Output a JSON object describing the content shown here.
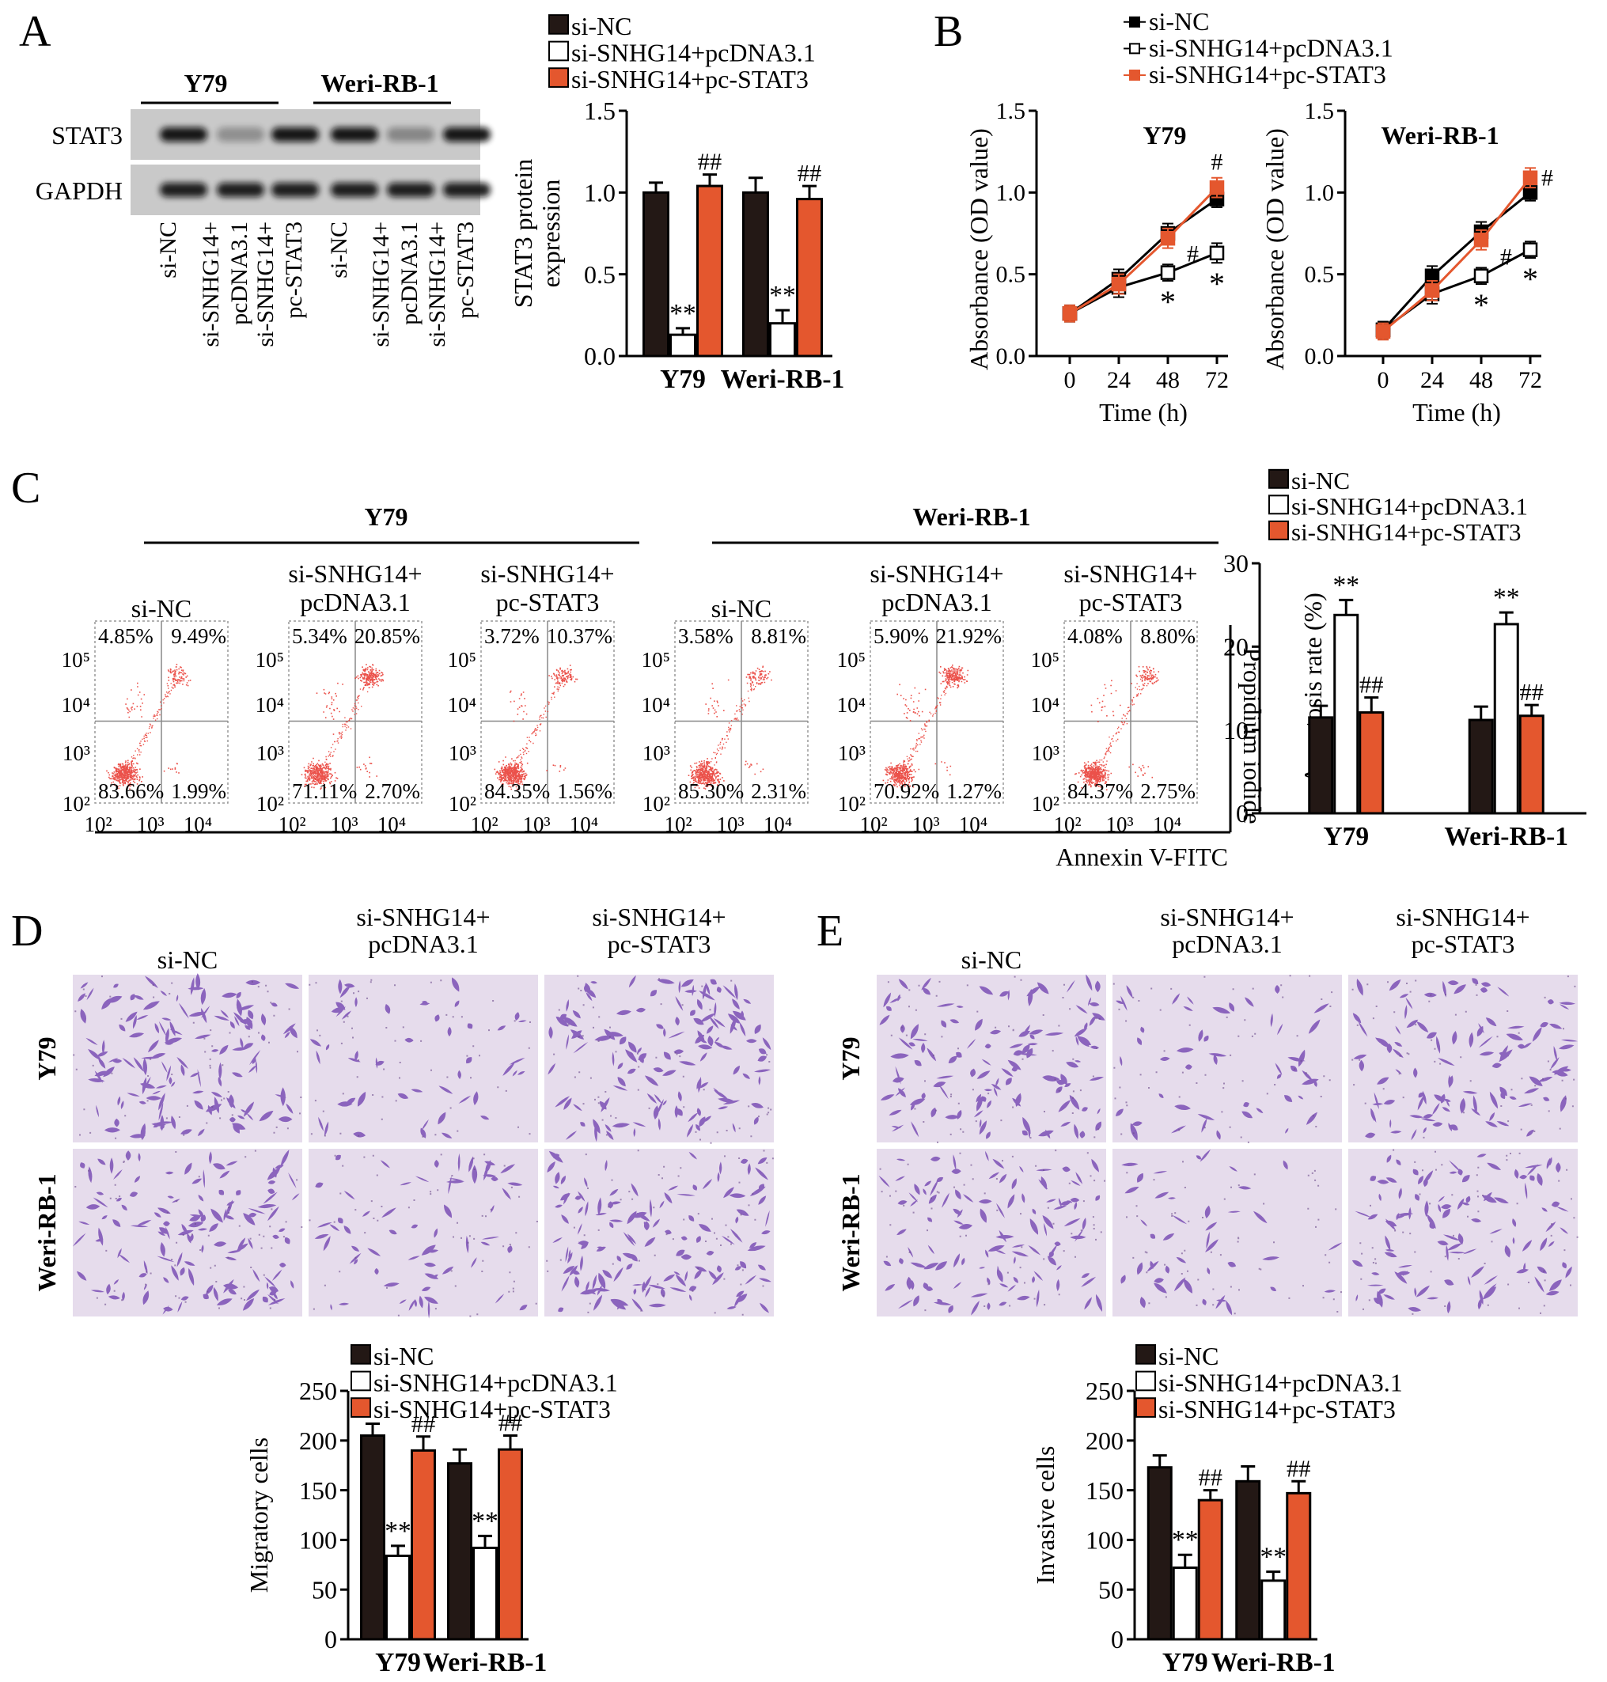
{
  "colors": {
    "si_nc": "#231815",
    "pcdna": "#ffffff",
    "stat3": "#e4572e",
    "flow_dot": "#e8322a",
    "crystal_violet": "#7a4fb5"
  },
  "legend_labels": [
    "si-NC",
    "si-SNHG14+pcDNA3.1",
    "si-SNHG14+pc-STAT3"
  ],
  "panel_labels": {
    "a": "A",
    "b": "B",
    "c": "C",
    "d": "D",
    "e": "E"
  },
  "western": {
    "cell_lines": [
      "Y79",
      "Weri-RB-1"
    ],
    "rows": [
      "STAT3",
      "GAPDH"
    ],
    "lanes": [
      "si-NC",
      "si-SNHG14+ pcDNA3.1",
      "si-SNHG14+ pc-STAT3",
      "si-NC",
      "si-SNHG14+ pcDNA3.1",
      "si-SNHG14+ pc-STAT3"
    ],
    "band_intensity": {
      "STAT3": [
        0.95,
        0.3,
        0.95,
        0.95,
        0.35,
        0.95
      ],
      "GAPDH": [
        0.9,
        0.9,
        0.9,
        0.9,
        0.9,
        0.9
      ]
    }
  },
  "flow": {
    "cell_lines": [
      "Y79",
      "Weri-RB-1"
    ],
    "group_labels": [
      [
        "si-NC"
      ],
      [
        "si-SNHG14+",
        "pcDNA3.1"
      ],
      [
        "si-SNHG14+",
        "pc-STAT3"
      ],
      [
        "si-NC"
      ],
      [
        "si-SNHG14+",
        "pcDNA3.1"
      ],
      [
        "si-SNHG14+",
        "pc-STAT3"
      ]
    ],
    "quadrants": [
      {
        "ul": "4.85%",
        "ur": "9.49%",
        "ll": "83.66%",
        "lr": "1.99%"
      },
      {
        "ul": "5.34%",
        "ur": "20.85%",
        "ll": "71.11%",
        "lr": "2.70%"
      },
      {
        "ul": "3.72%",
        "ur": "10.37%",
        "ll": "84.35%",
        "lr": "1.56%"
      },
      {
        "ul": "3.58%",
        "ur": "8.81%",
        "ll": "85.30%",
        "lr": "2.31%"
      },
      {
        "ul": "5.90%",
        "ur": "21.92%",
        "ll": "70.92%",
        "lr": "1.27%"
      },
      {
        "ul": "4.08%",
        "ur": "8.80%",
        "ll": "84.37%",
        "lr": "2.75%"
      }
    ],
    "y_ticks": [
      "10⁵",
      "10⁴",
      "10³",
      "10²"
    ],
    "x_ticks": [
      "10²",
      "10³",
      "10⁴"
    ],
    "y_axis": "Propidium iodide",
    "x_axis": "Annexin V-FITC"
  },
  "micrographs": {
    "column_labels": [
      [
        "si-NC"
      ],
      [
        "si-SNHG14+",
        "pcDNA3.1"
      ],
      [
        "si-SNHG14+",
        "pc-STAT3"
      ]
    ],
    "row_labels": [
      "Y79",
      "Weri-RB-1"
    ],
    "cell_density_d": [
      [
        1.0,
        0.35,
        0.95
      ],
      [
        0.9,
        0.45,
        0.95
      ]
    ],
    "cell_density_e": [
      [
        0.85,
        0.35,
        0.75
      ],
      [
        0.8,
        0.3,
        0.75
      ]
    ]
  },
  "chart_data": [
    {
      "id": "A",
      "type": "bar",
      "categories": [
        "Y79",
        "Weri-RB-1"
      ],
      "series": [
        {
          "name": "si-NC",
          "values": [
            1.0,
            1.0
          ],
          "errors": [
            0.06,
            0.09
          ]
        },
        {
          "name": "si-SNHG14+pcDNA3.1",
          "values": [
            0.13,
            0.2
          ],
          "errors": [
            0.04,
            0.08
          ]
        },
        {
          "name": "si-SNHG14+pc-STAT3",
          "values": [
            1.04,
            0.96
          ],
          "errors": [
            0.07,
            0.08
          ]
        }
      ],
      "ylabel": [
        "STAT3 protein",
        "expression"
      ],
      "ylim": [
        0,
        1.5
      ],
      "yticks": [
        0.0,
        0.5,
        1.0,
        1.5
      ],
      "annotations": [
        "**",
        "##"
      ]
    },
    {
      "id": "B1",
      "type": "line",
      "title": "Y79",
      "x": [
        0,
        24,
        48,
        72
      ],
      "series": [
        {
          "name": "si-NC",
          "values": [
            0.26,
            0.47,
            0.75,
            0.96
          ],
          "errors": [
            0.05,
            0.06,
            0.06,
            0.05
          ]
        },
        {
          "name": "si-SNHG14+pcDNA3.1",
          "values": [
            0.26,
            0.42,
            0.51,
            0.63
          ],
          "errors": [
            0.05,
            0.06,
            0.05,
            0.06
          ]
        },
        {
          "name": "si-SNHG14+pc-STAT3",
          "values": [
            0.26,
            0.44,
            0.72,
            1.03
          ],
          "errors": [
            0.05,
            0.06,
            0.06,
            0.06
          ]
        }
      ],
      "xlabel": "Time (h)",
      "ylabel": "Absorbance (OD value)",
      "ylim": [
        0,
        1.5
      ],
      "yticks": [
        0.0,
        0.5,
        1.0,
        1.5
      ],
      "annotations": [
        "*",
        "*",
        "#",
        "#"
      ]
    },
    {
      "id": "B2",
      "type": "line",
      "title": "Weri-RB-1",
      "x": [
        0,
        24,
        48,
        72
      ],
      "series": [
        {
          "name": "si-NC",
          "values": [
            0.16,
            0.49,
            0.76,
            1.0
          ],
          "errors": [
            0.05,
            0.06,
            0.06,
            0.05
          ]
        },
        {
          "name": "si-SNHG14+pcDNA3.1",
          "values": [
            0.16,
            0.38,
            0.49,
            0.65
          ],
          "errors": [
            0.05,
            0.06,
            0.05,
            0.05
          ]
        },
        {
          "name": "si-SNHG14+pc-STAT3",
          "values": [
            0.15,
            0.4,
            0.71,
            1.09
          ],
          "errors": [
            0.05,
            0.06,
            0.06,
            0.06
          ]
        }
      ],
      "xlabel": "Time (h)",
      "ylabel": "Absorbance (OD value)",
      "ylim": [
        0,
        1.5
      ],
      "yticks": [
        0.0,
        0.5,
        1.0,
        1.5
      ],
      "annotations": [
        "*",
        "*",
        "#",
        "#"
      ]
    },
    {
      "id": "C",
      "type": "bar",
      "categories": [
        "Y79",
        "Weri-RB-1"
      ],
      "series": [
        {
          "name": "si-NC",
          "values": [
            11.5,
            11.2
          ],
          "errors": [
            1.4,
            1.6
          ]
        },
        {
          "name": "si-SNHG14+pcDNA3.1",
          "values": [
            23.8,
            22.7
          ],
          "errors": [
            1.8,
            1.4
          ]
        },
        {
          "name": "si-SNHG14+pc-STAT3",
          "values": [
            12.1,
            11.7
          ],
          "errors": [
            1.8,
            1.3
          ]
        }
      ],
      "ylabel": "Apoptosis rate (%)",
      "ylim": [
        0,
        30
      ],
      "yticks": [
        0,
        10,
        20,
        30
      ],
      "annotations": [
        "**",
        "##"
      ]
    },
    {
      "id": "D",
      "type": "bar",
      "categories": [
        "Y79",
        "Weri-RB-1"
      ],
      "series": [
        {
          "name": "si-NC",
          "values": [
            205,
            177
          ],
          "errors": [
            12,
            14
          ]
        },
        {
          "name": "si-SNHG14+pcDNA3.1",
          "values": [
            84,
            92
          ],
          "errors": [
            10,
            12
          ]
        },
        {
          "name": "si-SNHG14+pc-STAT3",
          "values": [
            190,
            191
          ],
          "errors": [
            14,
            14
          ]
        }
      ],
      "ylabel": "Migratory cells",
      "ylim": [
        0,
        250
      ],
      "yticks": [
        0,
        50,
        100,
        150,
        200,
        250
      ],
      "annotations": [
        "**",
        "##"
      ]
    },
    {
      "id": "E",
      "type": "bar",
      "categories": [
        "Y79",
        "Weri-RB-1"
      ],
      "series": [
        {
          "name": "si-NC",
          "values": [
            173,
            159
          ],
          "errors": [
            12,
            15
          ]
        },
        {
          "name": "si-SNHG14+pcDNA3.1",
          "values": [
            72,
            59
          ],
          "errors": [
            13,
            9
          ]
        },
        {
          "name": "si-SNHG14+pc-STAT3",
          "values": [
            140,
            147
          ],
          "errors": [
            10,
            12
          ]
        }
      ],
      "ylabel": "Invasive cells",
      "ylim": [
        0,
        250
      ],
      "yticks": [
        0,
        50,
        100,
        150,
        200,
        250
      ],
      "annotations": [
        "**",
        "##"
      ]
    }
  ]
}
